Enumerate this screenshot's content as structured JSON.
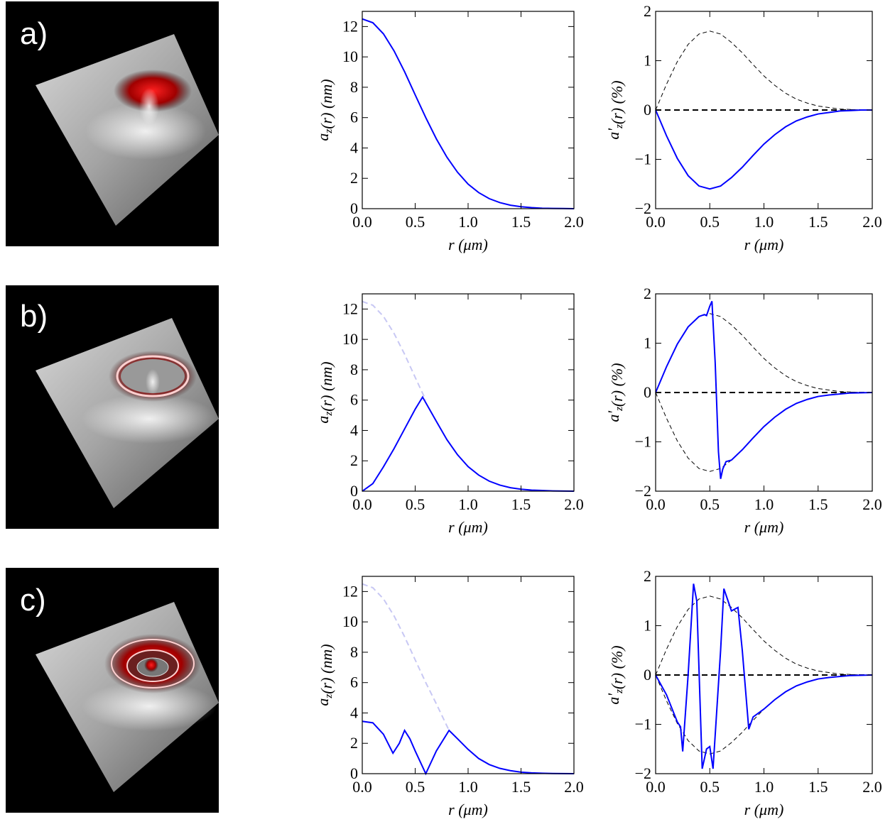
{
  "panels": [
    "a)",
    "b)",
    "c)"
  ],
  "chart_data": [
    {
      "type": "line",
      "xlabel": "r (μm)",
      "ylabel": "a_z(r) (nm)",
      "xlim": [
        0,
        2
      ],
      "ylim": [
        0,
        13
      ],
      "xticks": [
        {
          "value": 0,
          "label": "0.0"
        },
        {
          "value": 0.5,
          "label": "0.5"
        },
        {
          "value": 1,
          "label": "1.0"
        },
        {
          "value": 1.5,
          "label": "1.5"
        },
        {
          "value": 2,
          "label": "2.0"
        }
      ],
      "yticks": [
        0,
        2,
        4,
        6,
        8,
        10,
        12
      ],
      "series": [
        {
          "color": "#0000ff",
          "linestyle": "solid",
          "linewidth": 2,
          "x": [
            0,
            0.1,
            0.2,
            0.3,
            0.4,
            0.5,
            0.6,
            0.7,
            0.8,
            0.9,
            1.0,
            1.1,
            1.2,
            1.3,
            1.4,
            1.5,
            1.6,
            1.7,
            1.8,
            1.9,
            2.0
          ],
          "values": [
            12.5,
            12.25,
            11.52,
            10.4,
            9.02,
            7.5,
            6.0,
            4.6,
            3.39,
            2.4,
            1.62,
            1.06,
            0.66,
            0.4,
            0.23,
            0.13,
            0.07,
            0.03,
            0.02,
            0.01,
            0
          ]
        }
      ]
    },
    {
      "type": "line",
      "xlabel": "r (μm)",
      "ylabel": "a'_z(r) (%)",
      "xlim": [
        0,
        2
      ],
      "ylim": [
        -2,
        2
      ],
      "xticks": [
        {
          "value": 0,
          "label": "0.0"
        },
        {
          "value": 0.5,
          "label": "0.5"
        },
        {
          "value": 1,
          "label": "1.0"
        },
        {
          "value": 1.5,
          "label": "1.5"
        },
        {
          "value": 2,
          "label": "2.0"
        }
      ],
      "yticks": [
        {
          "value": -2,
          "label": "−2"
        },
        {
          "value": -1,
          "label": "−1"
        },
        0,
        1,
        2
      ],
      "series": [
        {
          "color": "#000000",
          "linestyle": "dashed",
          "linewidth": 1,
          "x": [
            0,
            0.1,
            0.2,
            0.3,
            0.4,
            0.5,
            0.6,
            0.7,
            0.8,
            0.9,
            1.0,
            1.1,
            1.2,
            1.3,
            1.4,
            1.5,
            1.6,
            1.7,
            1.8,
            1.9,
            2.0
          ],
          "values": [
            0,
            0.52,
            0.98,
            1.33,
            1.54,
            1.6,
            1.54,
            1.37,
            1.16,
            0.92,
            0.69,
            0.5,
            0.34,
            0.22,
            0.14,
            0.08,
            0.05,
            0.02,
            0.01,
            0,
            0
          ]
        },
        {
          "color": "#000000",
          "linestyle": "dashed",
          "linewidth": 2,
          "x": [
            0,
            2
          ],
          "values": [
            0,
            0
          ]
        },
        {
          "color": "#0000ff",
          "linestyle": "solid",
          "linewidth": 2,
          "x": [
            0,
            0.1,
            0.2,
            0.3,
            0.4,
            0.5,
            0.6,
            0.7,
            0.8,
            0.9,
            1.0,
            1.1,
            1.2,
            1.3,
            1.4,
            1.5,
            1.6,
            1.7,
            1.8,
            1.9,
            2.0
          ],
          "values": [
            0,
            -0.52,
            -0.98,
            -1.33,
            -1.54,
            -1.6,
            -1.54,
            -1.37,
            -1.16,
            -0.92,
            -0.69,
            -0.5,
            -0.34,
            -0.22,
            -0.14,
            -0.08,
            -0.05,
            -0.02,
            -0.01,
            0,
            0
          ]
        }
      ]
    },
    {
      "type": "line",
      "xlabel": "r (μm)",
      "ylabel": "a_z(r) (nm)",
      "xlim": [
        0,
        2
      ],
      "ylim": [
        0,
        13
      ],
      "xticks": [
        {
          "value": 0,
          "label": "0.0"
        },
        {
          "value": 0.5,
          "label": "0.5"
        },
        {
          "value": 1,
          "label": "1.0"
        },
        {
          "value": 1.5,
          "label": "1.5"
        },
        {
          "value": 2,
          "label": "2.0"
        }
      ],
      "yticks": [
        0,
        2,
        4,
        6,
        8,
        10,
        12
      ],
      "series": [
        {
          "color": "#c8c8f4",
          "linestyle": "dashed",
          "linewidth": 2,
          "x": [
            0,
            0.1,
            0.2,
            0.3,
            0.4,
            0.5,
            0.6
          ],
          "values": [
            12.5,
            12.25,
            11.52,
            10.4,
            9.02,
            7.5,
            6.0
          ]
        },
        {
          "color": "#0000ff",
          "linestyle": "solid",
          "linewidth": 2,
          "x": [
            0,
            0.1,
            0.2,
            0.3,
            0.4,
            0.5,
            0.57,
            0.7,
            0.8,
            0.9,
            1.0,
            1.1,
            1.2,
            1.3,
            1.4,
            1.5,
            1.6,
            1.8,
            2.0
          ],
          "values": [
            0,
            0.5,
            1.6,
            2.8,
            4.1,
            5.4,
            6.2,
            4.6,
            3.39,
            2.4,
            1.62,
            1.06,
            0.66,
            0.4,
            0.23,
            0.13,
            0.07,
            0.02,
            0
          ]
        }
      ]
    },
    {
      "type": "line",
      "xlabel": "r (μm)",
      "ylabel": "a'_z(r) (%)",
      "xlim": [
        0,
        2
      ],
      "ylim": [
        -2,
        2
      ],
      "xticks": [
        {
          "value": 0,
          "label": "0.0"
        },
        {
          "value": 0.5,
          "label": "0.5"
        },
        {
          "value": 1,
          "label": "1.0"
        },
        {
          "value": 1.5,
          "label": "1.5"
        },
        {
          "value": 2,
          "label": "2.0"
        }
      ],
      "yticks": [
        {
          "value": -2,
          "label": "−2"
        },
        {
          "value": -1,
          "label": "−1"
        },
        0,
        1,
        2
      ],
      "series": [
        {
          "color": "#000000",
          "linestyle": "dashed",
          "linewidth": 1,
          "x": [
            0,
            0.1,
            0.2,
            0.3,
            0.4,
            0.5,
            0.6,
            0.7,
            0.8,
            0.9,
            1.0,
            1.1,
            1.2,
            1.3,
            1.4,
            1.5,
            1.6,
            1.7,
            1.8,
            1.9,
            2.0
          ],
          "values": [
            0,
            0.52,
            0.98,
            1.33,
            1.54,
            1.6,
            1.54,
            1.37,
            1.16,
            0.92,
            0.69,
            0.5,
            0.34,
            0.22,
            0.14,
            0.08,
            0.05,
            0.02,
            0.01,
            0,
            0
          ]
        },
        {
          "color": "#000000",
          "linestyle": "dashed",
          "linewidth": 1,
          "x": [
            0,
            0.1,
            0.2,
            0.3,
            0.4,
            0.5,
            0.6,
            0.7,
            0.8,
            0.9,
            1.0,
            1.1,
            1.2,
            1.3,
            1.4,
            1.5,
            1.6,
            1.7,
            1.8,
            1.9,
            2.0
          ],
          "values": [
            0,
            -0.52,
            -0.98,
            -1.33,
            -1.54,
            -1.6,
            -1.54,
            -1.37,
            -1.16,
            -0.92,
            -0.69,
            -0.5,
            -0.34,
            -0.22,
            -0.14,
            -0.08,
            -0.05,
            -0.02,
            -0.01,
            0,
            0
          ]
        },
        {
          "color": "#000000",
          "linestyle": "dashed",
          "linewidth": 2,
          "x": [
            0,
            2
          ],
          "values": [
            0,
            0
          ]
        },
        {
          "color": "#0000ff",
          "linestyle": "solid",
          "linewidth": 2,
          "x": [
            0,
            0.1,
            0.2,
            0.3,
            0.4,
            0.45,
            0.47,
            0.5,
            0.52,
            0.55,
            0.58,
            0.6,
            0.62,
            0.65,
            0.7,
            0.8,
            0.9,
            1.0,
            1.1,
            1.2,
            1.3,
            1.4,
            1.5,
            1.6,
            1.8,
            2.0
          ],
          "values": [
            0,
            0.52,
            0.98,
            1.33,
            1.54,
            1.58,
            1.56,
            1.75,
            1.85,
            0.6,
            -1.2,
            -1.75,
            -1.55,
            -1.4,
            -1.37,
            -1.16,
            -0.92,
            -0.69,
            -0.5,
            -0.34,
            -0.22,
            -0.14,
            -0.08,
            -0.05,
            -0.01,
            0
          ]
        }
      ]
    },
    {
      "type": "line",
      "xlabel": "r (μm)",
      "ylabel": "a_z(r) (nm)",
      "xlim": [
        0,
        2
      ],
      "ylim": [
        0,
        13
      ],
      "xticks": [
        {
          "value": 0,
          "label": "0.0"
        },
        {
          "value": 0.5,
          "label": "0.5"
        },
        {
          "value": 1,
          "label": "1.0"
        },
        {
          "value": 1.5,
          "label": "1.5"
        },
        {
          "value": 2,
          "label": "2.0"
        }
      ],
      "yticks": [
        0,
        2,
        4,
        6,
        8,
        10,
        12
      ],
      "series": [
        {
          "color": "#c8c8f4",
          "linestyle": "dashed",
          "linewidth": 2,
          "x": [
            0,
            0.1,
            0.2,
            0.3,
            0.4,
            0.5,
            0.6,
            0.7,
            0.82
          ],
          "values": [
            12.5,
            12.25,
            11.52,
            10.4,
            9.02,
            7.5,
            6.0,
            4.6,
            2.85
          ]
        },
        {
          "color": "#0000ff",
          "linestyle": "solid",
          "linewidth": 2,
          "x": [
            0,
            0.1,
            0.2,
            0.29,
            0.35,
            0.4,
            0.45,
            0.5,
            0.6,
            0.7,
            0.82,
            0.9,
            1.0,
            1.1,
            1.2,
            1.3,
            1.4,
            1.5,
            1.6,
            1.8,
            2.0
          ],
          "values": [
            3.45,
            3.35,
            2.6,
            1.35,
            2.0,
            2.85,
            2.3,
            1.5,
            0,
            1.5,
            2.85,
            2.3,
            1.6,
            1.0,
            0.6,
            0.35,
            0.2,
            0.1,
            0.05,
            0.01,
            0
          ]
        }
      ]
    },
    {
      "type": "line",
      "xlabel": "r (μm)",
      "ylabel": "a'_z(r) (%)",
      "xlim": [
        0,
        2
      ],
      "ylim": [
        -2,
        2
      ],
      "xticks": [
        {
          "value": 0,
          "label": "0.0"
        },
        {
          "value": 0.5,
          "label": "0.5"
        },
        {
          "value": 1,
          "label": "1.0"
        },
        {
          "value": 1.5,
          "label": "1.5"
        },
        {
          "value": 2,
          "label": "2.0"
        }
      ],
      "yticks": [
        {
          "value": -2,
          "label": "−2"
        },
        {
          "value": -1,
          "label": "−1"
        },
        0,
        1,
        2
      ],
      "series": [
        {
          "color": "#000000",
          "linestyle": "dashed",
          "linewidth": 1,
          "x": [
            0,
            0.1,
            0.2,
            0.3,
            0.4,
            0.5,
            0.6,
            0.7,
            0.8,
            0.9,
            1.0,
            1.1,
            1.2,
            1.3,
            1.4,
            1.5,
            1.6,
            1.7,
            1.8,
            1.9,
            2.0
          ],
          "values": [
            0,
            0.52,
            0.98,
            1.33,
            1.54,
            1.6,
            1.54,
            1.37,
            1.16,
            0.92,
            0.69,
            0.5,
            0.34,
            0.22,
            0.14,
            0.08,
            0.05,
            0.02,
            0.01,
            0,
            0
          ]
        },
        {
          "color": "#000000",
          "linestyle": "dashed",
          "linewidth": 1,
          "x": [
            0,
            0.1,
            0.2,
            0.3,
            0.4,
            0.5,
            0.6,
            0.7,
            0.8,
            0.9,
            1.0,
            1.1,
            1.2,
            1.3,
            1.4,
            1.5,
            1.6,
            1.7,
            1.8,
            1.9,
            2.0
          ],
          "values": [
            0,
            -0.52,
            -0.98,
            -1.33,
            -1.54,
            -1.6,
            -1.54,
            -1.37,
            -1.16,
            -0.92,
            -0.69,
            -0.5,
            -0.34,
            -0.22,
            -0.14,
            -0.08,
            -0.05,
            -0.02,
            -0.01,
            0,
            0
          ]
        },
        {
          "color": "#000000",
          "linestyle": "dashed",
          "linewidth": 2,
          "x": [
            0,
            2
          ],
          "values": [
            0,
            0
          ]
        },
        {
          "color": "#0000ff",
          "linestyle": "solid",
          "linewidth": 2,
          "x": [
            0,
            0.1,
            0.2,
            0.23,
            0.25,
            0.3,
            0.35,
            0.38,
            0.43,
            0.47,
            0.5,
            0.53,
            0.6,
            0.63,
            0.7,
            0.76,
            0.8,
            0.86,
            0.9,
            1.0,
            1.1,
            1.2,
            1.3,
            1.4,
            1.5,
            1.6,
            1.8,
            2.0
          ],
          "values": [
            0,
            -0.4,
            -0.95,
            -1.05,
            -1.55,
            0,
            1.85,
            1.5,
            -1.9,
            -1.5,
            -1.45,
            -1.9,
            0.5,
            1.75,
            1.3,
            1.37,
            0.5,
            -1.1,
            -0.85,
            -0.69,
            -0.5,
            -0.34,
            -0.22,
            -0.14,
            -0.08,
            -0.05,
            -0.01,
            0
          ]
        }
      ]
    }
  ]
}
